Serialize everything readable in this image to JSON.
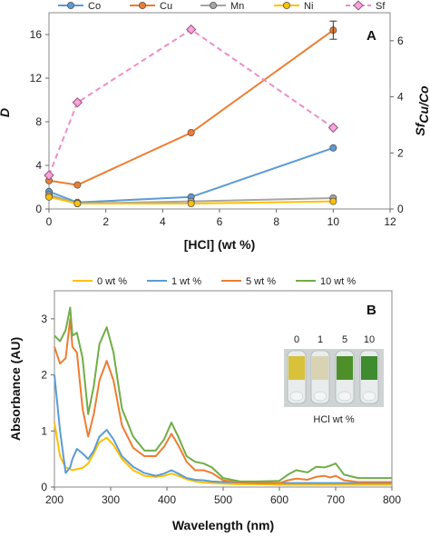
{
  "chart_data": [
    {
      "type": "line",
      "panel_label": "A",
      "xlabel": "[HCl] (wt %)",
      "ylabel": "D",
      "y2label_main": "Sf",
      "y2label_sub": "Cu/Co",
      "xlim": [
        0,
        12
      ],
      "ylim": [
        0,
        18
      ],
      "y2lim": [
        0,
        7
      ],
      "xticks": [
        "0",
        "2",
        "4",
        "6",
        "8",
        "10",
        "12"
      ],
      "yticks": [
        "0",
        "4",
        "8",
        "12",
        "16"
      ],
      "y2ticks": [
        "0",
        "2",
        "4",
        "6"
      ],
      "x": [
        0,
        1,
        5,
        10
      ],
      "series": [
        {
          "name": "Co",
          "axis": "left",
          "color": "#5b9bd5",
          "values": [
            1.6,
            0.6,
            1.1,
            5.6
          ]
        },
        {
          "name": "Cu",
          "axis": "left",
          "color": "#ed7d31",
          "values": [
            2.6,
            2.2,
            7.0,
            16.4
          ]
        },
        {
          "name": "Mn",
          "axis": "left",
          "color": "#a5a5a5",
          "values": [
            1.3,
            0.5,
            0.7,
            1.0
          ]
        },
        {
          "name": "Ni",
          "axis": "left",
          "color": "#ffc000",
          "values": [
            1.1,
            0.5,
            0.5,
            0.7
          ]
        },
        {
          "name": "Sf",
          "axis": "right",
          "color": "#f08cc8",
          "dashed": true,
          "values": [
            1.2,
            3.8,
            6.4,
            2.9
          ]
        }
      ]
    },
    {
      "type": "line",
      "panel_label": "B",
      "xlabel": "Wavelength (nm)",
      "ylabel": "Absorbance (AU)",
      "xlim": [
        200,
        800
      ],
      "ylim": [
        0,
        3.5
      ],
      "xticks": [
        "200",
        "300",
        "400",
        "500",
        "600",
        "700",
        "800"
      ],
      "yticks": [
        "0",
        "1",
        "2",
        "3"
      ],
      "x": [
        200,
        210,
        220,
        228,
        232,
        240,
        250,
        260,
        270,
        280,
        293,
        305,
        320,
        340,
        360,
        380,
        395,
        408,
        420,
        435,
        450,
        465,
        480,
        500,
        530,
        560,
        600,
        615,
        630,
        650,
        665,
        680,
        690,
        700,
        715,
        740,
        800
      ],
      "series": [
        {
          "name": "0 wt %",
          "color": "#ffc000",
          "values": [
            1.15,
            0.55,
            0.35,
            0.32,
            0.3,
            0.32,
            0.34,
            0.42,
            0.6,
            0.8,
            0.88,
            0.75,
            0.5,
            0.3,
            0.2,
            0.18,
            0.2,
            0.24,
            0.2,
            0.14,
            0.1,
            0.08,
            0.07,
            0.06,
            0.05,
            0.05,
            0.04,
            0.04,
            0.04,
            0.04,
            0.04,
            0.04,
            0.04,
            0.04,
            0.04,
            0.04,
            0.04
          ]
        },
        {
          "name": "1 wt %",
          "color": "#5b9bd5",
          "values": [
            2.0,
            1.0,
            0.25,
            0.35,
            0.5,
            0.68,
            0.6,
            0.5,
            0.65,
            0.9,
            1.02,
            0.85,
            0.55,
            0.36,
            0.25,
            0.2,
            0.24,
            0.3,
            0.24,
            0.16,
            0.13,
            0.12,
            0.1,
            0.09,
            0.08,
            0.07,
            0.07,
            0.07,
            0.07,
            0.07,
            0.07,
            0.07,
            0.07,
            0.07,
            0.07,
            0.07,
            0.07
          ]
        },
        {
          "name": "5 wt %",
          "color": "#ed7d31",
          "values": [
            2.5,
            2.2,
            2.3,
            3.0,
            2.5,
            2.4,
            1.4,
            0.9,
            1.3,
            1.9,
            2.25,
            1.9,
            1.1,
            0.7,
            0.55,
            0.55,
            0.72,
            0.95,
            0.75,
            0.45,
            0.3,
            0.3,
            0.25,
            0.12,
            0.08,
            0.07,
            0.07,
            0.12,
            0.15,
            0.13,
            0.18,
            0.2,
            0.17,
            0.2,
            0.12,
            0.09,
            0.09
          ]
        },
        {
          "name": "10 wt %",
          "color": "#70ad47",
          "values": [
            2.7,
            2.6,
            2.8,
            3.2,
            2.7,
            2.75,
            2.3,
            1.3,
            1.8,
            2.55,
            2.85,
            2.4,
            1.4,
            0.9,
            0.65,
            0.65,
            0.85,
            1.15,
            0.9,
            0.55,
            0.45,
            0.42,
            0.35,
            0.16,
            0.1,
            0.1,
            0.11,
            0.22,
            0.3,
            0.26,
            0.36,
            0.35,
            0.38,
            0.42,
            0.22,
            0.16,
            0.16
          ]
        }
      ],
      "inset": {
        "labels": [
          "0",
          "1",
          "5",
          "10"
        ],
        "caption": "HCl wt %",
        "tube_colors": [
          "#d8c23a",
          "#d9d3b4",
          "#4f8f2a",
          "#3e8c2e"
        ]
      }
    }
  ]
}
